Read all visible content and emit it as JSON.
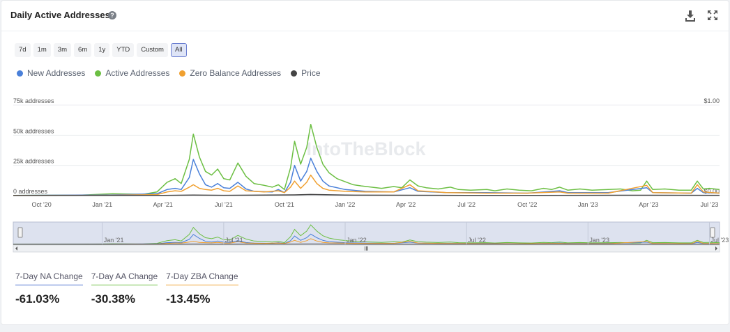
{
  "header": {
    "title": "Daily Active Addresses",
    "help": "?"
  },
  "icons": {
    "download": "download-icon",
    "expand": "expand-icon",
    "help": "help-icon"
  },
  "ranges": [
    {
      "label": "7d"
    },
    {
      "label": "1m"
    },
    {
      "label": "3m"
    },
    {
      "label": "6m"
    },
    {
      "label": "1y"
    },
    {
      "label": "YTD"
    },
    {
      "label": "Custom"
    },
    {
      "label": "All",
      "active": true
    }
  ],
  "legend": [
    {
      "label": "New Addresses",
      "color": "#4a80d9"
    },
    {
      "label": "Active Addresses",
      "color": "#6cbf43"
    },
    {
      "label": "Zero Balance Addresses",
      "color": "#f0a030"
    },
    {
      "label": "Price",
      "color": "#444444"
    }
  ],
  "watermark": "IntoTheBlock",
  "chart_data": {
    "type": "line",
    "y_ticks": [
      "0 addresses",
      "25k addresses",
      "50k addresses",
      "75k addresses"
    ],
    "y_right_ticks": [
      "$0.00",
      "$1.00"
    ],
    "ylim": [
      0,
      75000
    ],
    "x_ticks": [
      "Oct '20",
      "Jan '21",
      "Apr '21",
      "Jul '21",
      "Oct '21",
      "Jan '22",
      "Apr '22",
      "Jul '22",
      "Oct '22",
      "Jan '23",
      "Apr '23",
      "Jul '23"
    ],
    "x_tick_positions": [
      0,
      3,
      6,
      9,
      12,
      15,
      18,
      21,
      24,
      27,
      30,
      33
    ],
    "xlim": [
      -1.4,
      33.5
    ],
    "navigator_ticks": [
      "Jan '21",
      "Jul '21",
      "Jan '22",
      "Jul '22",
      "Jan '23",
      "Jul '23"
    ],
    "navigator_tick_positions": [
      3,
      9,
      15,
      21,
      27,
      33
    ],
    "series": [
      {
        "name": "Active Addresses",
        "color": "#6cbf43",
        "points": [
          [
            -1.4,
            200
          ],
          [
            2,
            400
          ],
          [
            3.5,
            1500
          ],
          [
            5,
            1000
          ],
          [
            5.7,
            3000
          ],
          [
            6.2,
            11000
          ],
          [
            6.6,
            14000
          ],
          [
            6.9,
            10000
          ],
          [
            7.3,
            30000
          ],
          [
            7.5,
            51000
          ],
          [
            7.8,
            32000
          ],
          [
            8.1,
            20000
          ],
          [
            8.4,
            17000
          ],
          [
            8.7,
            22000
          ],
          [
            9,
            14000
          ],
          [
            9.3,
            13000
          ],
          [
            9.7,
            27000
          ],
          [
            10.1,
            16000
          ],
          [
            10.5,
            10000
          ],
          [
            11,
            8500
          ],
          [
            11.4,
            7000
          ],
          [
            11.7,
            9000
          ],
          [
            12,
            5000
          ],
          [
            12.3,
            23000
          ],
          [
            12.5,
            45000
          ],
          [
            12.8,
            26000
          ],
          [
            13.1,
            40000
          ],
          [
            13.3,
            59000
          ],
          [
            13.6,
            40000
          ],
          [
            13.9,
            26000
          ],
          [
            14.2,
            19000
          ],
          [
            14.6,
            14000
          ],
          [
            15,
            11500
          ],
          [
            15.4,
            9000
          ],
          [
            15.8,
            8000
          ],
          [
            16.3,
            7000
          ],
          [
            16.8,
            6000
          ],
          [
            17.4,
            7500
          ],
          [
            17.8,
            6500
          ],
          [
            18.2,
            13000
          ],
          [
            18.6,
            8000
          ],
          [
            19,
            6500
          ],
          [
            19.6,
            5500
          ],
          [
            20.2,
            7000
          ],
          [
            20.6,
            5000
          ],
          [
            21.2,
            4500
          ],
          [
            22,
            5000
          ],
          [
            22.4,
            4000
          ],
          [
            23,
            5500
          ],
          [
            23.6,
            4500
          ],
          [
            24.2,
            4000
          ],
          [
            24.8,
            6000
          ],
          [
            25.2,
            5000
          ],
          [
            25.6,
            7000
          ],
          [
            26,
            4500
          ],
          [
            26.6,
            5500
          ],
          [
            27.2,
            4500
          ],
          [
            28,
            5000
          ],
          [
            28.6,
            5500
          ],
          [
            29.2,
            4000
          ],
          [
            29.6,
            4500
          ],
          [
            29.9,
            12000
          ],
          [
            30.2,
            5000
          ],
          [
            30.8,
            5500
          ],
          [
            31.5,
            4500
          ],
          [
            32.1,
            4500
          ],
          [
            32.4,
            12000
          ],
          [
            32.7,
            5500
          ],
          [
            33,
            6000
          ],
          [
            33.5,
            5000
          ]
        ]
      },
      {
        "name": "New Addresses",
        "color": "#4a80d9",
        "points": [
          [
            -1.4,
            100
          ],
          [
            3.5,
            600
          ],
          [
            5.7,
            1500
          ],
          [
            6.2,
            5000
          ],
          [
            6.6,
            6000
          ],
          [
            6.9,
            5000
          ],
          [
            7.3,
            15000
          ],
          [
            7.5,
            30000
          ],
          [
            7.8,
            18000
          ],
          [
            8.1,
            9000
          ],
          [
            8.4,
            7000
          ],
          [
            8.7,
            10000
          ],
          [
            9,
            6500
          ],
          [
            9.3,
            6000
          ],
          [
            9.7,
            11000
          ],
          [
            10.1,
            5500
          ],
          [
            10.5,
            3500
          ],
          [
            11.4,
            3000
          ],
          [
            11.7,
            5000
          ],
          [
            12,
            2500
          ],
          [
            12.3,
            11000
          ],
          [
            12.5,
            25000
          ],
          [
            12.8,
            12000
          ],
          [
            13.1,
            20000
          ],
          [
            13.3,
            31000
          ],
          [
            13.6,
            20000
          ],
          [
            13.9,
            12000
          ],
          [
            14.2,
            8000
          ],
          [
            15,
            5000
          ],
          [
            16,
            3500
          ],
          [
            17.4,
            3000
          ],
          [
            18.2,
            6500
          ],
          [
            18.6,
            3500
          ],
          [
            20,
            2500
          ],
          [
            22,
            2500
          ],
          [
            24,
            2000
          ],
          [
            25.6,
            4000
          ],
          [
            26,
            2500
          ],
          [
            28,
            2500
          ],
          [
            29.9,
            6500
          ],
          [
            30.2,
            2500
          ],
          [
            32.1,
            2000
          ],
          [
            32.4,
            6000
          ],
          [
            32.7,
            2500
          ],
          [
            33.5,
            2000
          ]
        ]
      },
      {
        "name": "Zero Balance Addresses",
        "color": "#f0a030",
        "points": [
          [
            -1.4,
            100
          ],
          [
            3.5,
            300
          ],
          [
            5.7,
            800
          ],
          [
            6.2,
            3000
          ],
          [
            6.6,
            4000
          ],
          [
            6.9,
            3500
          ],
          [
            7.3,
            7000
          ],
          [
            7.5,
            9000
          ],
          [
            7.8,
            6000
          ],
          [
            8.1,
            5000
          ],
          [
            8.4,
            4500
          ],
          [
            8.7,
            6000
          ],
          [
            9,
            4000
          ],
          [
            9.3,
            3500
          ],
          [
            9.7,
            8000
          ],
          [
            10.1,
            4000
          ],
          [
            11,
            3000
          ],
          [
            11.7,
            4000
          ],
          [
            12,
            2500
          ],
          [
            12.3,
            7000
          ],
          [
            12.5,
            12000
          ],
          [
            12.8,
            6000
          ],
          [
            13.1,
            11000
          ],
          [
            13.3,
            17000
          ],
          [
            13.6,
            10000
          ],
          [
            13.9,
            6000
          ],
          [
            14.2,
            4500
          ],
          [
            15,
            3500
          ],
          [
            16,
            3000
          ],
          [
            17.4,
            3000
          ],
          [
            18.2,
            9000
          ],
          [
            18.6,
            4000
          ],
          [
            20,
            2500
          ],
          [
            22,
            2000
          ],
          [
            24,
            2000
          ],
          [
            25.6,
            3000
          ],
          [
            26,
            2000
          ],
          [
            28,
            2000
          ],
          [
            29.9,
            8500
          ],
          [
            30.2,
            2500
          ],
          [
            32.1,
            2000
          ],
          [
            32.4,
            9000
          ],
          [
            32.7,
            3000
          ],
          [
            33.5,
            2000
          ]
        ]
      },
      {
        "name": "Price",
        "color": "#444444",
        "points": [
          [
            -1.4,
            50
          ],
          [
            6,
            150
          ],
          [
            7.5,
            400
          ],
          [
            9,
            250
          ],
          [
            12.5,
            600
          ],
          [
            13.3,
            900
          ],
          [
            15,
            400
          ],
          [
            18,
            300
          ],
          [
            21,
            200
          ],
          [
            24,
            200
          ],
          [
            27,
            250
          ],
          [
            30,
            300
          ],
          [
            33.5,
            250
          ]
        ]
      }
    ]
  },
  "stats": [
    {
      "label": "7-Day NA Change",
      "value": "-61.03%",
      "color": "#4a6fd0"
    },
    {
      "label": "7-Day AA Change",
      "value": "-30.38%",
      "color": "#6cbf43"
    },
    {
      "label": "7-Day ZBA Change",
      "value": "-13.45%",
      "color": "#f0a030"
    }
  ]
}
